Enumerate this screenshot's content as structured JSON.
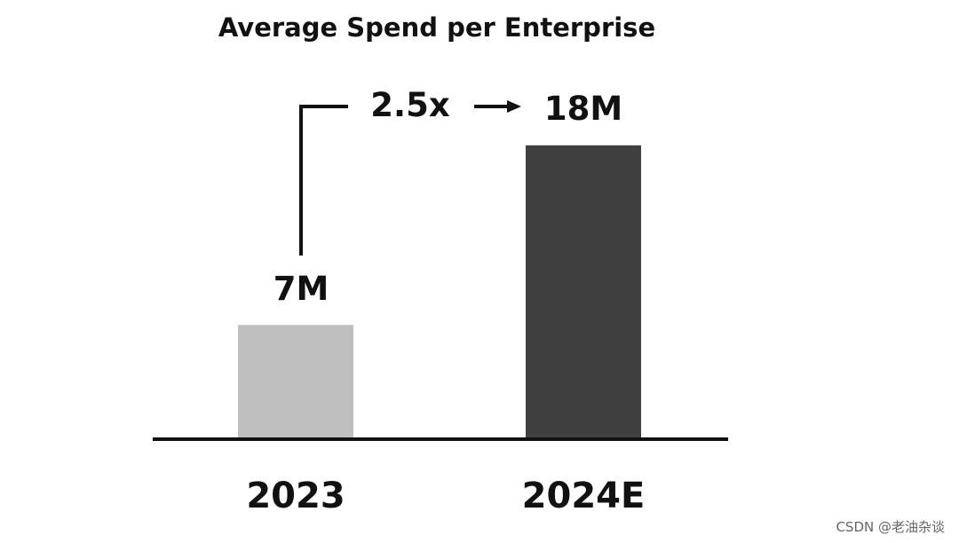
{
  "chart_data": {
    "type": "bar",
    "title": "Average Spend per Enterprise",
    "categories": [
      "2023",
      "2024E"
    ],
    "values": [
      7,
      18
    ],
    "value_labels": [
      "7M",
      "18M"
    ],
    "unit": "M",
    "ylim": [
      0,
      20
    ],
    "xlabel": "",
    "ylabel": "",
    "grid": false,
    "legend": "none",
    "colors": [
      "#bfbfbf",
      "#404040"
    ],
    "annotation": {
      "text": "2.5x",
      "from": "2023",
      "to": "2024E"
    }
  },
  "watermark": "CSDN @老油杂谈"
}
